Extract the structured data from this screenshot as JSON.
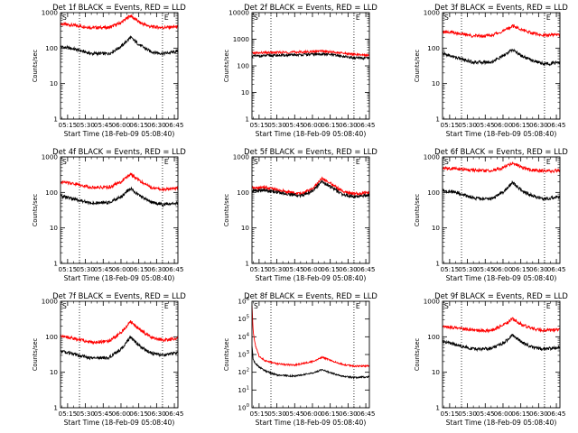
{
  "panel_titles": [
    "Det 1f BLACK = Events, RED = LLD",
    "Det 2f BLACK = Events, RED = LLD",
    "Det 3f BLACK = Events, RED = LLD",
    "Det 4f BLACK = Events, RED = LLD",
    "Det 5f BLACK = Events, RED = LLD",
    "Det 6f BLACK = Events, RED = LLD",
    "Det 7f BLACK = Events, RED = LLD",
    "Det 8f BLACK = Events, RED = LLD",
    "Det 9f BLACK = Events, RED = LLD"
  ],
  "xlabel": "Start Time (18-Feb-09 05:08:40)",
  "ylabel": "Counts/sec",
  "marker_labels": {
    "start": "S",
    "end": "E"
  },
  "colors": {
    "events": "#000000",
    "lld": "#ff0000"
  },
  "chart_data": [
    {
      "type": "line",
      "title": "Det 1f BLACK = Events, RED = LLD",
      "yscale": "log",
      "ylim": [
        1,
        1000
      ],
      "yticks": [
        "1",
        "10",
        "100",
        "1000"
      ],
      "xlim": [
        "05:09",
        "06:48"
      ],
      "xticks": [
        "05:15",
        "05:30",
        "05:45",
        "06:00",
        "06:15",
        "06:30",
        "06:45"
      ],
      "xlabel": "Start Time (18-Feb-09 05:08:40)",
      "ylabel": "Counts/sec",
      "markers": [
        {
          "label": "S",
          "x": "05:25"
        },
        {
          "label": "E",
          "x": "06:35"
        }
      ],
      "series": [
        {
          "color": "#ff0000",
          "x": [
            "05:09",
            "05:20",
            "05:35",
            "05:50",
            "06:00",
            "06:08",
            "06:16",
            "06:25",
            "06:35",
            "06:48"
          ],
          "values": [
            480,
            440,
            380,
            380,
            520,
            830,
            520,
            400,
            380,
            400
          ]
        },
        {
          "color": "#000000",
          "x": [
            "05:09",
            "05:20",
            "05:35",
            "05:50",
            "06:00",
            "06:08",
            "06:16",
            "06:25",
            "06:35",
            "06:48"
          ],
          "values": [
            110,
            95,
            70,
            70,
            110,
            200,
            120,
            80,
            70,
            80
          ]
        }
      ]
    },
    {
      "type": "line",
      "title": "Det 2f BLACK = Events, RED = LLD",
      "yscale": "log",
      "ylim": [
        1,
        10000
      ],
      "yticks": [
        "1",
        "10",
        "100",
        "1000",
        "10000"
      ],
      "xlim": [
        "05:09",
        "06:48"
      ],
      "xticks": [
        "05:15",
        "05:30",
        "05:45",
        "06:00",
        "06:15",
        "06:30",
        "06:45"
      ],
      "xlabel": "Start Time (18-Feb-09 05:08:40)",
      "ylabel": "Counts/sec",
      "markers": [
        {
          "label": "S",
          "x": "05:25"
        },
        {
          "label": "E",
          "x": "06:35"
        }
      ],
      "series": [
        {
          "color": "#ff0000",
          "x": [
            "05:09",
            "05:20",
            "05:35",
            "05:50",
            "06:00",
            "06:08",
            "06:16",
            "06:25",
            "06:35",
            "06:48"
          ],
          "values": [
            300,
            310,
            320,
            330,
            340,
            360,
            330,
            300,
            270,
            250
          ]
        },
        {
          "color": "#000000",
          "x": [
            "05:09",
            "05:20",
            "05:35",
            "05:50",
            "06:00",
            "06:08",
            "06:16",
            "06:25",
            "06:35",
            "06:48"
          ],
          "values": [
            230,
            240,
            250,
            260,
            270,
            280,
            260,
            230,
            200,
            190
          ]
        }
      ]
    },
    {
      "type": "line",
      "title": "Det 3f BLACK = Events, RED = LLD",
      "yscale": "log",
      "ylim": [
        1,
        1000
      ],
      "yticks": [
        "1",
        "10",
        "100",
        "1000"
      ],
      "xlim": [
        "05:09",
        "06:48"
      ],
      "xticks": [
        "05:15",
        "05:30",
        "05:45",
        "06:00",
        "06:15",
        "06:30",
        "06:45"
      ],
      "xlabel": "Start Time (18-Feb-09 05:08:40)",
      "ylabel": "Counts/sec",
      "markers": [
        {
          "label": "S",
          "x": "05:25"
        },
        {
          "label": "E",
          "x": "06:35"
        }
      ],
      "series": [
        {
          "color": "#ff0000",
          "x": [
            "05:09",
            "05:20",
            "05:35",
            "05:50",
            "06:00",
            "06:08",
            "06:16",
            "06:25",
            "06:35",
            "06:48"
          ],
          "values": [
            300,
            270,
            220,
            230,
            300,
            420,
            330,
            260,
            230,
            240
          ]
        },
        {
          "color": "#000000",
          "x": [
            "05:09",
            "05:20",
            "05:35",
            "05:50",
            "06:00",
            "06:08",
            "06:16",
            "06:25",
            "06:35",
            "06:48"
          ],
          "values": [
            70,
            55,
            40,
            40,
            60,
            90,
            60,
            45,
            35,
            40
          ]
        }
      ]
    },
    {
      "type": "line",
      "title": "Det 4f BLACK = Events, RED = LLD",
      "yscale": "log",
      "ylim": [
        1,
        1000
      ],
      "yticks": [
        "1",
        "10",
        "100",
        "1000"
      ],
      "xlim": [
        "05:09",
        "06:48"
      ],
      "xticks": [
        "05:15",
        "05:30",
        "05:45",
        "06:00",
        "06:15",
        "06:30",
        "06:45"
      ],
      "xlabel": "Start Time (18-Feb-09 05:08:40)",
      "ylabel": "Counts/sec",
      "markers": [
        {
          "label": "S",
          "x": "05:25"
        },
        {
          "label": "E",
          "x": "06:35"
        }
      ],
      "series": [
        {
          "color": "#ff0000",
          "x": [
            "05:09",
            "05:20",
            "05:35",
            "05:50",
            "06:00",
            "06:08",
            "06:16",
            "06:25",
            "06:35",
            "06:48"
          ],
          "values": [
            200,
            180,
            140,
            140,
            200,
            330,
            210,
            140,
            120,
            130
          ]
        },
        {
          "color": "#000000",
          "x": [
            "05:09",
            "05:20",
            "05:35",
            "05:50",
            "06:00",
            "06:08",
            "06:16",
            "06:25",
            "06:35",
            "06:48"
          ],
          "values": [
            80,
            65,
            50,
            52,
            75,
            130,
            80,
            55,
            45,
            50
          ]
        }
      ]
    },
    {
      "type": "line",
      "title": "Det 5f BLACK = Events, RED = LLD",
      "yscale": "log",
      "ylim": [
        1,
        1000
      ],
      "yticks": [
        "1",
        "10",
        "100",
        "1000"
      ],
      "xlim": [
        "05:09",
        "06:48"
      ],
      "xticks": [
        "05:15",
        "05:30",
        "05:45",
        "06:00",
        "06:15",
        "06:30",
        "06:45"
      ],
      "xlabel": "Start Time (18-Feb-09 05:08:40)",
      "ylabel": "Counts/sec",
      "markers": [
        {
          "label": "S",
          "x": "05:25"
        },
        {
          "label": "E",
          "x": "06:35"
        }
      ],
      "series": [
        {
          "color": "#ff0000",
          "x": [
            "05:09",
            "05:20",
            "05:35",
            "05:50",
            "06:00",
            "06:08",
            "06:16",
            "06:25",
            "06:35",
            "06:48"
          ],
          "values": [
            130,
            140,
            110,
            90,
            130,
            250,
            170,
            110,
            90,
            100
          ]
        },
        {
          "color": "#000000",
          "x": [
            "05:09",
            "05:20",
            "05:35",
            "05:50",
            "06:00",
            "06:08",
            "06:16",
            "06:25",
            "06:35",
            "06:48"
          ],
          "values": [
            110,
            115,
            95,
            80,
            110,
            200,
            140,
            90,
            75,
            85
          ]
        }
      ]
    },
    {
      "type": "line",
      "title": "Det 6f BLACK = Events, RED = LLD",
      "yscale": "log",
      "ylim": [
        1,
        1000
      ],
      "yticks": [
        "1",
        "10",
        "100",
        "1000"
      ],
      "xlim": [
        "05:09",
        "06:48"
      ],
      "xticks": [
        "05:15",
        "05:30",
        "05:45",
        "06:00",
        "06:15",
        "06:30",
        "06:45"
      ],
      "xlabel": "Start Time (18-Feb-09 05:08:40)",
      "ylabel": "Counts/sec",
      "markers": [
        {
          "label": "S",
          "x": "05:25"
        },
        {
          "label": "E",
          "x": "06:35"
        }
      ],
      "series": [
        {
          "color": "#ff0000",
          "x": [
            "05:09",
            "05:20",
            "05:35",
            "05:50",
            "06:00",
            "06:08",
            "06:16",
            "06:25",
            "06:35",
            "06:48"
          ],
          "values": [
            480,
            470,
            420,
            400,
            500,
            680,
            500,
            420,
            400,
            410
          ]
        },
        {
          "color": "#000000",
          "x": [
            "05:09",
            "05:20",
            "05:35",
            "05:50",
            "06:00",
            "06:08",
            "06:16",
            "06:25",
            "06:35",
            "06:48"
          ],
          "values": [
            110,
            100,
            70,
            65,
            100,
            190,
            110,
            80,
            65,
            75
          ]
        }
      ]
    },
    {
      "type": "line",
      "title": "Det 7f BLACK = Events, RED = LLD",
      "yscale": "log",
      "ylim": [
        1,
        1000
      ],
      "yticks": [
        "1",
        "10",
        "100",
        "1000"
      ],
      "xlim": [
        "05:09",
        "06:48"
      ],
      "xticks": [
        "05:15",
        "05:30",
        "05:45",
        "06:00",
        "06:15",
        "06:30",
        "06:45"
      ],
      "xlabel": "Start Time (18-Feb-09 05:08:40)",
      "ylabel": "Counts/sec",
      "markers": [
        {
          "label": "S",
          "x": "05:25"
        },
        {
          "label": "E",
          "x": "06:35"
        }
      ],
      "series": [
        {
          "color": "#ff0000",
          "x": [
            "05:09",
            "05:20",
            "05:35",
            "05:50",
            "06:00",
            "06:08",
            "06:16",
            "06:25",
            "06:35",
            "06:48"
          ],
          "values": [
            110,
            90,
            70,
            75,
            130,
            270,
            160,
            100,
            80,
            90
          ]
        },
        {
          "color": "#000000",
          "x": [
            "05:09",
            "05:20",
            "05:35",
            "05:50",
            "06:00",
            "06:08",
            "06:16",
            "06:25",
            "06:35",
            "06:48"
          ],
          "values": [
            40,
            32,
            25,
            26,
            45,
            95,
            55,
            35,
            30,
            35
          ]
        }
      ]
    },
    {
      "type": "line",
      "title": "Det 8f BLACK = Events, RED = LLD",
      "yscale": "log",
      "ylim": [
        1,
        1000000
      ],
      "yticks": [
        "10^0",
        "10^1",
        "10^2",
        "10^3",
        "10^4",
        "10^5",
        "10^6"
      ],
      "xlim": [
        "05:09",
        "06:48"
      ],
      "xticks": [
        "05:15",
        "05:30",
        "05:45",
        "06:00",
        "06:15",
        "06:30",
        "06:45"
      ],
      "xlabel": "Start Time (18-Feb-09 05:08:40)",
      "ylabel": "Counts/sec",
      "markers": [
        {
          "label": "S",
          "x": "05:25"
        },
        {
          "label": "E",
          "x": "06:35"
        }
      ],
      "series": [
        {
          "color": "#ff0000",
          "x": [
            "05:09",
            "05:10",
            "05:12",
            "05:15",
            "05:20",
            "05:30",
            "05:45",
            "06:00",
            "06:08",
            "06:16",
            "06:25",
            "06:35",
            "06:48"
          ],
          "values": [
            600000,
            20000,
            3000,
            800,
            450,
            300,
            250,
            400,
            700,
            450,
            280,
            220,
            230
          ]
        },
        {
          "color": "#000000",
          "x": [
            "05:09",
            "05:10",
            "05:12",
            "05:15",
            "05:20",
            "05:30",
            "05:45",
            "06:00",
            "06:08",
            "06:16",
            "06:25",
            "06:35",
            "06:48"
          ],
          "values": [
            3000,
            500,
            300,
            200,
            120,
            70,
            60,
            90,
            140,
            90,
            60,
            50,
            55
          ]
        }
      ]
    },
    {
      "type": "line",
      "title": "Det 9f BLACK = Events, RED = LLD",
      "yscale": "log",
      "ylim": [
        1,
        1000
      ],
      "yticks": [
        "1",
        "10",
        "100",
        "1000"
      ],
      "xlim": [
        "05:09",
        "06:48"
      ],
      "xticks": [
        "05:15",
        "05:30",
        "05:45",
        "06:00",
        "06:15",
        "06:30",
        "06:45"
      ],
      "xlabel": "Start Time (18-Feb-09 05:08:40)",
      "ylabel": "Counts/sec",
      "markers": [
        {
          "label": "S",
          "x": "05:25"
        },
        {
          "label": "E",
          "x": "06:35"
        }
      ],
      "series": [
        {
          "color": "#ff0000",
          "x": [
            "05:09",
            "05:20",
            "05:35",
            "05:50",
            "06:00",
            "06:08",
            "06:16",
            "06:25",
            "06:35",
            "06:48"
          ],
          "values": [
            200,
            180,
            150,
            150,
            210,
            320,
            220,
            170,
            150,
            160
          ]
        },
        {
          "color": "#000000",
          "x": [
            "05:09",
            "05:20",
            "05:35",
            "05:50",
            "06:00",
            "06:08",
            "06:16",
            "06:25",
            "06:35",
            "06:48"
          ],
          "values": [
            75,
            60,
            45,
            46,
            65,
            110,
            70,
            50,
            45,
            50
          ]
        }
      ]
    }
  ]
}
